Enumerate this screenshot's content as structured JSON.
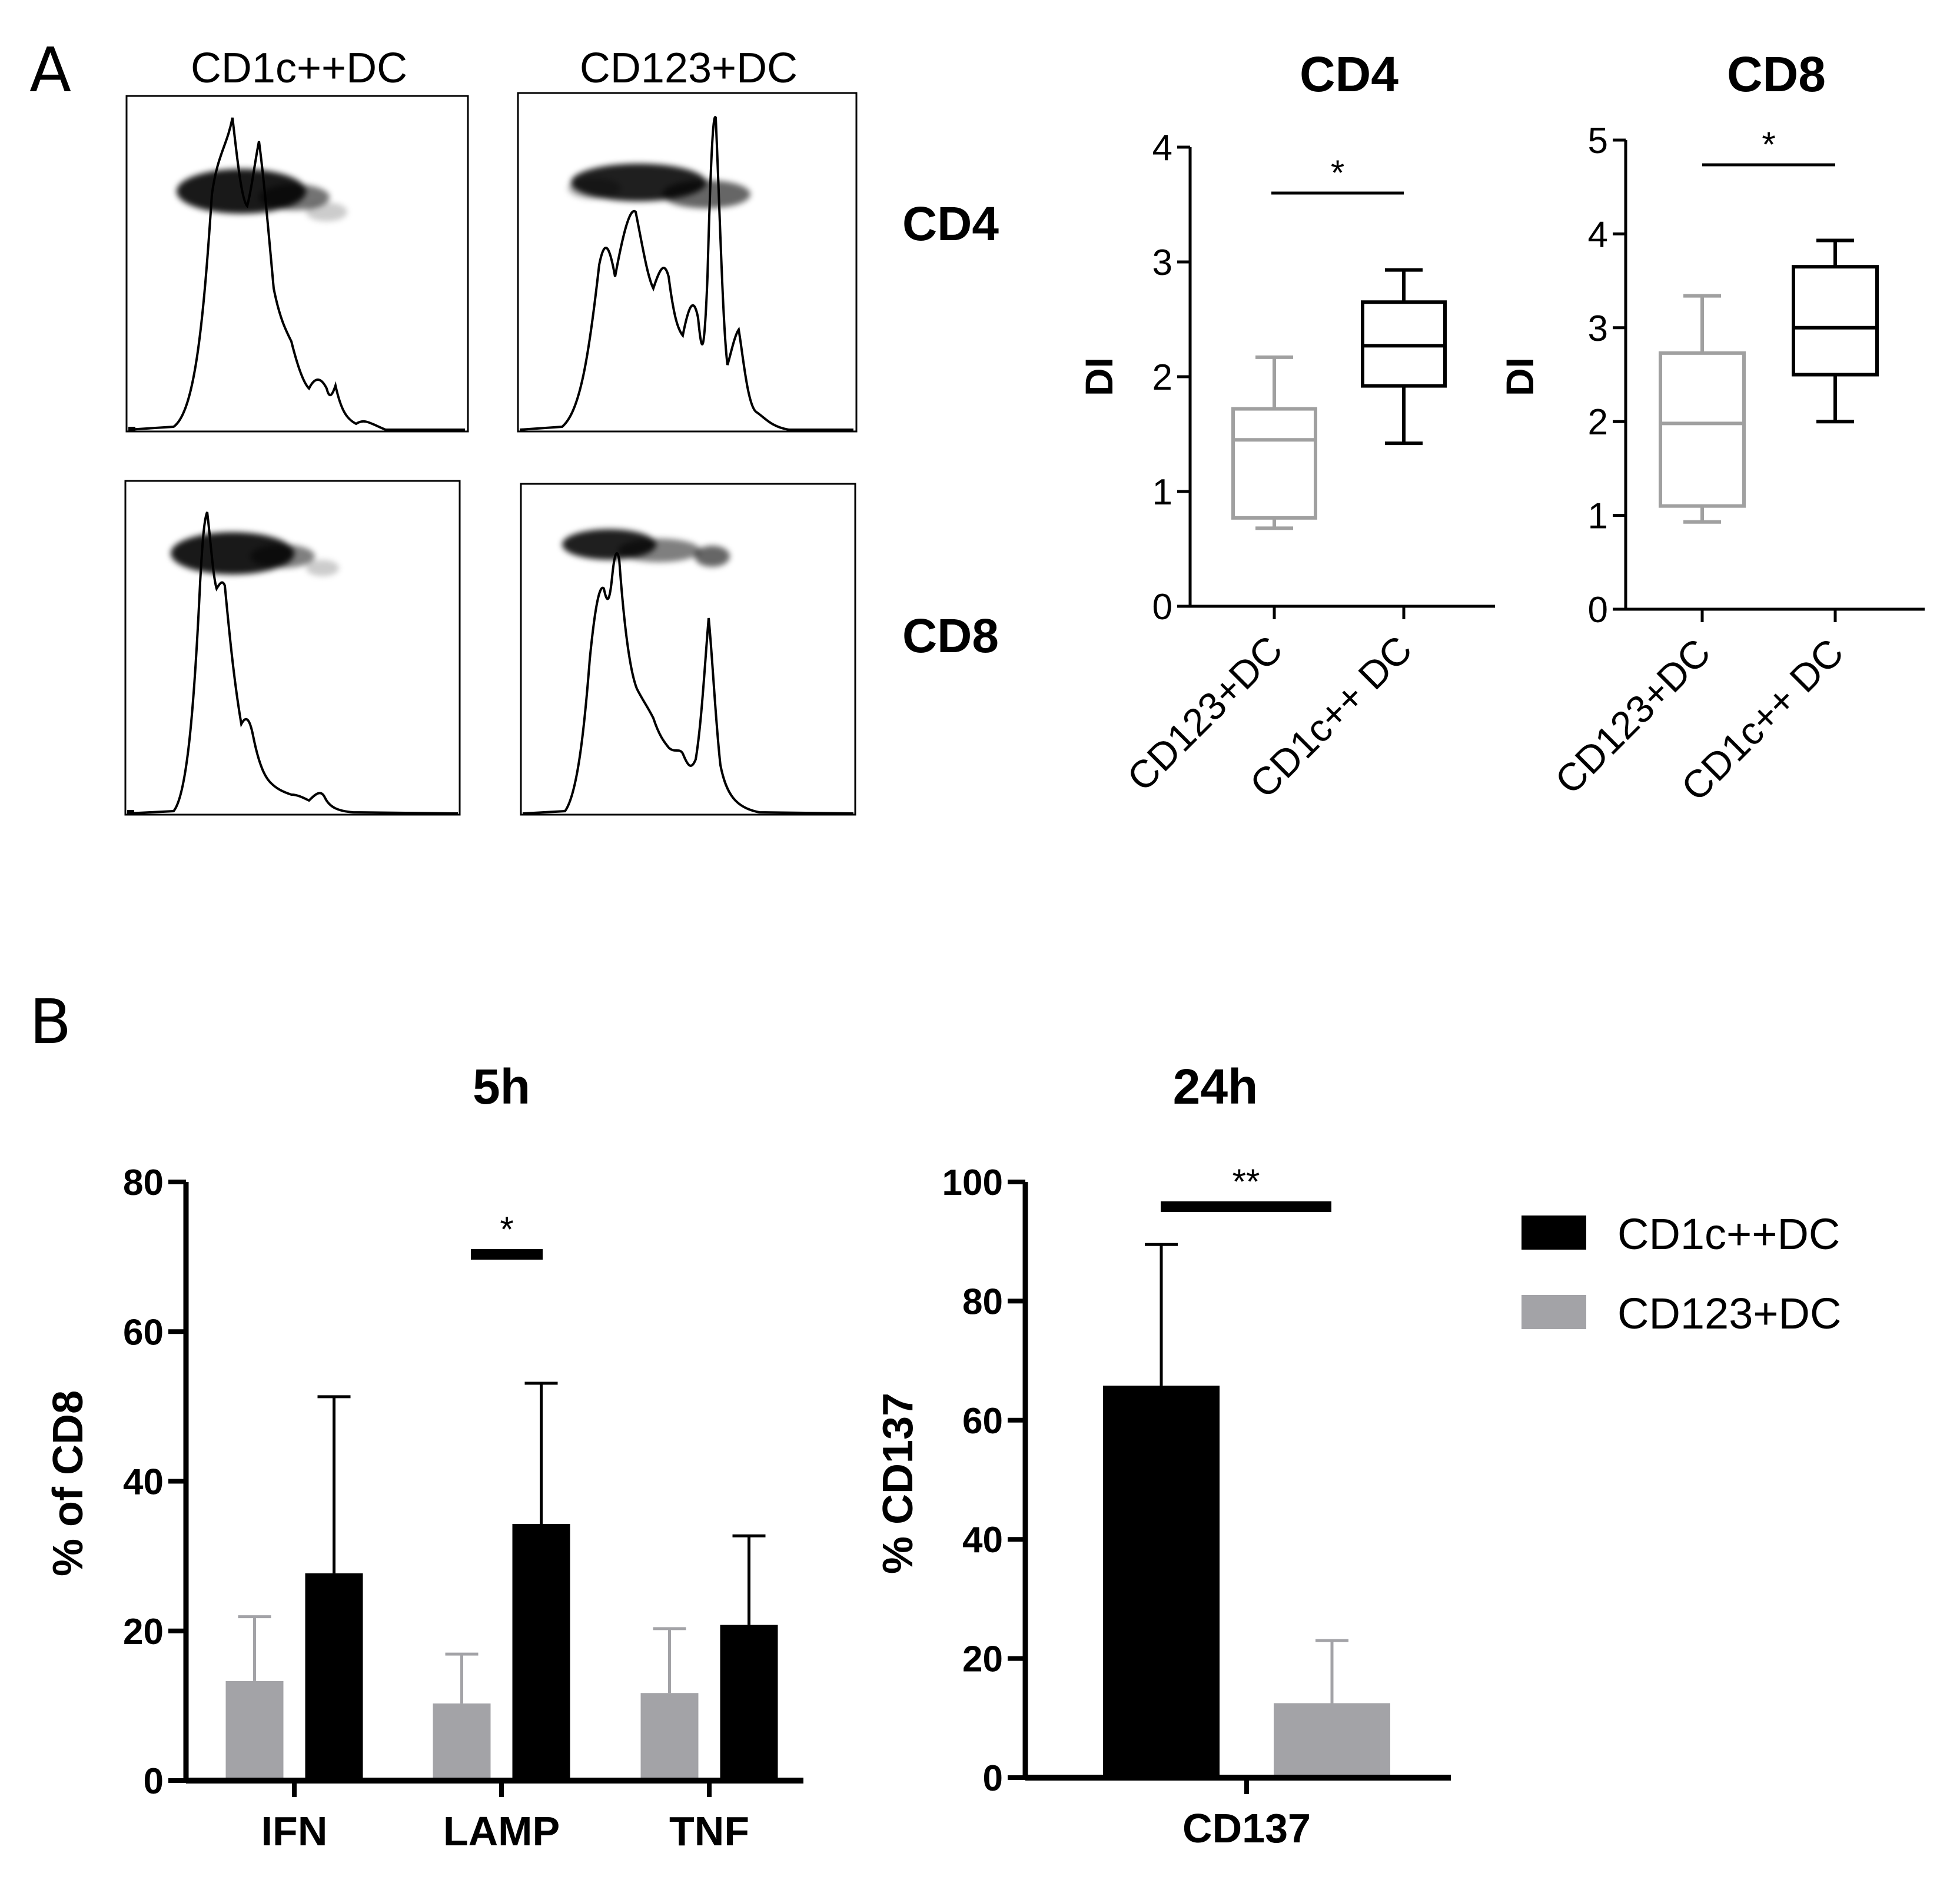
{
  "colors": {
    "black": "#000000",
    "gray": "#a3a3a7",
    "box_gray": "#a0a0a0"
  },
  "panel_a": {
    "letter": "A",
    "flow": {
      "col_titles": [
        "CD1c++DC",
        "CD123+DC"
      ],
      "row_labels": [
        "CD4",
        "CD8"
      ]
    }
  },
  "panel_b": {
    "letter": "B",
    "legend": [
      {
        "label": "CD1c++DC",
        "color": "#000000"
      },
      {
        "label": "CD123+DC",
        "color": "#a3a3a7"
      }
    ]
  },
  "chart_data": [
    {
      "id": "box-cd4",
      "type": "box",
      "title": "CD4",
      "ylabel": "DI",
      "ylim": [
        0,
        4
      ],
      "yticks": [
        0,
        1,
        2,
        3,
        4
      ],
      "categories": [
        "CD123+DC",
        "CD1c++ DC"
      ],
      "boxes": [
        {
          "label": "CD123+DC",
          "min": 0.68,
          "q1": 0.77,
          "median": 1.45,
          "q3": 1.72,
          "max": 2.17,
          "color": "#a0a0a0"
        },
        {
          "label": "CD1c++ DC",
          "min": 1.42,
          "q1": 1.92,
          "median": 2.27,
          "q3": 2.65,
          "max": 2.93,
          "color": "#000000"
        }
      ],
      "significance": "*"
    },
    {
      "id": "box-cd8",
      "type": "box",
      "title": "CD8",
      "ylabel": "DI",
      "ylim": [
        0,
        5
      ],
      "yticks": [
        0,
        1,
        2,
        3,
        4,
        5
      ],
      "categories": [
        "CD123+DC",
        "CD1c++ DC"
      ],
      "boxes": [
        {
          "label": "CD123+DC",
          "min": 0.93,
          "q1": 1.1,
          "median": 1.98,
          "q3": 2.73,
          "max": 3.34,
          "color": "#a0a0a0"
        },
        {
          "label": "CD1c++ DC",
          "min": 2.0,
          "q1": 2.5,
          "median": 3.0,
          "q3": 3.65,
          "max": 3.93,
          "color": "#000000"
        }
      ],
      "significance": "*"
    },
    {
      "id": "bar-5h",
      "type": "bar",
      "title": "5h",
      "ylabel": "% of CD8",
      "ylim": [
        0,
        80
      ],
      "yticks": [
        0,
        20,
        40,
        60,
        80
      ],
      "categories": [
        "IFN",
        "LAMP",
        "TNF"
      ],
      "series": [
        {
          "name": "CD123+DC",
          "color": "#a3a3a7",
          "values": [
            13.3,
            10.3,
            11.7
          ],
          "errors": [
            8.6,
            6.6,
            8.6
          ]
        },
        {
          "name": "CD1c++DC",
          "color": "#000000",
          "values": [
            27.7,
            34.3,
            20.8
          ],
          "errors": [
            23.6,
            18.8,
            11.9
          ]
        }
      ],
      "significance": [
        {
          "category": "LAMP",
          "label": "*"
        }
      ]
    },
    {
      "id": "bar-24h",
      "type": "bar",
      "title": "24h",
      "ylabel": "% CD137",
      "ylim": [
        0,
        100
      ],
      "yticks": [
        0,
        20,
        40,
        60,
        80,
        100
      ],
      "categories": [
        "CD137"
      ],
      "series": [
        {
          "name": "CD1c++DC",
          "color": "#000000",
          "values": [
            65.8
          ],
          "errors": [
            23.7
          ]
        },
        {
          "name": "CD123+DC",
          "color": "#a3a3a7",
          "values": [
            12.5
          ],
          "errors": [
            10.5
          ]
        }
      ],
      "significance": [
        {
          "category": "CD137",
          "label": "**"
        }
      ]
    }
  ]
}
